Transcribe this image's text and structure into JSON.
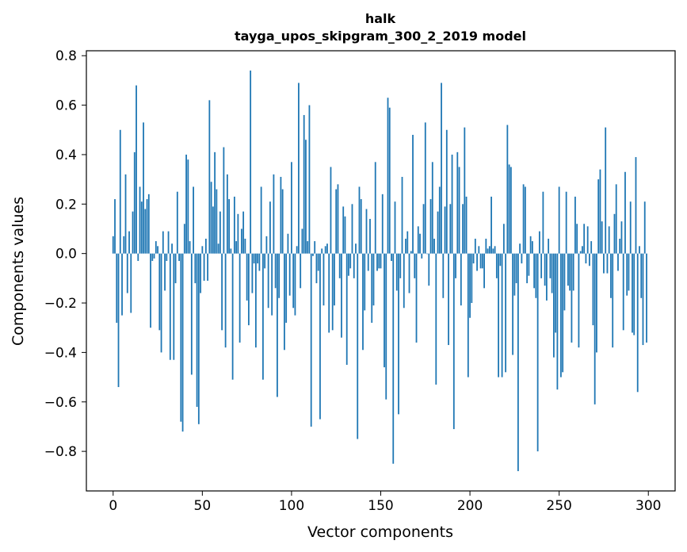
{
  "chart_data": {
    "type": "bar",
    "title": "halk",
    "subtitle": "tayga_upos_skipgram_300_2_2019 model",
    "xlabel": "Vector components",
    "ylabel": "Components values",
    "xlim": [
      -15,
      315
    ],
    "ylim": [
      -0.96,
      0.82
    ],
    "xticks": [
      0,
      50,
      100,
      150,
      200,
      250,
      300
    ],
    "xtick_labels": [
      "0",
      "50",
      "100",
      "150",
      "200",
      "250",
      "300"
    ],
    "yticks": [
      -0.8,
      -0.6,
      -0.4,
      -0.2,
      0.0,
      0.2,
      0.4,
      0.6,
      0.8
    ],
    "ytick_labels": [
      "−0.8",
      "−0.6",
      "−0.4",
      "−0.2",
      "0.0",
      "0.2",
      "0.4",
      "0.6",
      "0.8"
    ],
    "bar_color": "#1f77b4",
    "grid": false,
    "x": [
      0,
      1,
      2,
      3,
      4,
      5,
      6,
      7,
      8,
      9,
      10,
      11,
      12,
      13,
      14,
      15,
      16,
      17,
      18,
      19,
      20,
      21,
      22,
      23,
      24,
      25,
      26,
      27,
      28,
      29,
      30,
      31,
      32,
      33,
      34,
      35,
      36,
      37,
      38,
      39,
      40,
      41,
      42,
      43,
      44,
      45,
      46,
      47,
      48,
      49,
      50,
      51,
      52,
      53,
      54,
      55,
      56,
      57,
      58,
      59,
      60,
      61,
      62,
      63,
      64,
      65,
      66,
      67,
      68,
      69,
      70,
      71,
      72,
      73,
      74,
      75,
      76,
      77,
      78,
      79,
      80,
      81,
      82,
      83,
      84,
      85,
      86,
      87,
      88,
      89,
      90,
      91,
      92,
      93,
      94,
      95,
      96,
      97,
      98,
      99,
      100,
      101,
      102,
      103,
      104,
      105,
      106,
      107,
      108,
      109,
      110,
      111,
      112,
      113,
      114,
      115,
      116,
      117,
      118,
      119,
      120,
      121,
      122,
      123,
      124,
      125,
      126,
      127,
      128,
      129,
      130,
      131,
      132,
      133,
      134,
      135,
      136,
      137,
      138,
      139,
      140,
      141,
      142,
      143,
      144,
      145,
      146,
      147,
      148,
      149,
      150,
      151,
      152,
      153,
      154,
      155,
      156,
      157,
      158,
      159,
      160,
      161,
      162,
      163,
      164,
      165,
      166,
      167,
      168,
      169,
      170,
      171,
      172,
      173,
      174,
      175,
      176,
      177,
      178,
      179,
      180,
      181,
      182,
      183,
      184,
      185,
      186,
      187,
      188,
      189,
      190,
      191,
      192,
      193,
      194,
      195,
      196,
      197,
      198,
      199,
      200,
      201,
      202,
      203,
      204,
      205,
      206,
      207,
      208,
      209,
      210,
      211,
      212,
      213,
      214,
      215,
      216,
      217,
      218,
      219,
      220,
      221,
      222,
      223,
      224,
      225,
      226,
      227,
      228,
      229,
      230,
      231,
      232,
      233,
      234,
      235,
      236,
      237,
      238,
      239,
      240,
      241,
      242,
      243,
      244,
      245,
      246,
      247,
      248,
      249,
      250,
      251,
      252,
      253,
      254,
      255,
      256,
      257,
      258,
      259,
      260,
      261,
      262,
      263,
      264,
      265,
      266,
      267,
      268,
      269,
      270,
      271,
      272,
      273,
      274,
      275,
      276,
      277,
      278,
      279,
      280,
      281,
      282,
      283,
      284,
      285,
      286,
      287,
      288,
      289,
      290,
      291,
      292,
      293,
      294,
      295,
      296,
      297,
      298,
      299
    ],
    "values": [
      0.07,
      0.22,
      -0.28,
      -0.54,
      0.5,
      -0.25,
      0.07,
      0.32,
      -0.16,
      0.09,
      -0.24,
      0.17,
      0.41,
      0.68,
      -0.03,
      0.27,
      0.21,
      0.53,
      0.18,
      0.22,
      0.24,
      -0.3,
      -0.03,
      -0.02,
      0.05,
      0.03,
      -0.31,
      -0.4,
      0.09,
      -0.15,
      -0.03,
      0.09,
      -0.43,
      0.04,
      -0.43,
      -0.12,
      0.25,
      -0.03,
      -0.68,
      -0.72,
      0.12,
      0.4,
      0.38,
      0.05,
      -0.49,
      0.27,
      -0.12,
      -0.62,
      -0.69,
      -0.16,
      0.03,
      -0.11,
      0.06,
      -0.11,
      0.62,
      0.29,
      0.19,
      0.41,
      0.26,
      0.04,
      0.17,
      -0.31,
      0.43,
      -0.38,
      0.32,
      0.22,
      0.02,
      -0.51,
      0.23,
      0.05,
      0.16,
      -0.36,
      0.1,
      0.17,
      0.06,
      -0.19,
      -0.29,
      0.74,
      -0.16,
      -0.04,
      -0.38,
      -0.04,
      -0.07,
      0.27,
      -0.51,
      -0.06,
      0.07,
      -0.22,
      0.21,
      -0.25,
      0.32,
      -0.14,
      -0.58,
      -0.18,
      0.31,
      0.26,
      -0.39,
      -0.28,
      0.08,
      -0.17,
      0.37,
      -0.22,
      -0.25,
      0.03,
      0.69,
      -0.14,
      0.1,
      0.56,
      0.46,
      0.05,
      0.6,
      -0.7,
      -0.01,
      0.05,
      -0.12,
      -0.07,
      -0.67,
      0.02,
      -0.21,
      0.03,
      0.04,
      -0.32,
      0.35,
      -0.31,
      -0.21,
      0.26,
      0.28,
      -0.1,
      -0.34,
      0.19,
      0.15,
      -0.45,
      -0.09,
      -0.06,
      0.2,
      -0.1,
      0.04,
      -0.75,
      0.27,
      0.22,
      -0.39,
      -0.23,
      0.18,
      -0.07,
      0.14,
      -0.28,
      -0.21,
      0.37,
      -0.07,
      -0.06,
      -0.06,
      0.24,
      -0.46,
      -0.59,
      0.63,
      0.59,
      -0.03,
      -0.85,
      0.21,
      -0.15,
      -0.65,
      -0.1,
      0.31,
      -0.22,
      0.06,
      0.09,
      -0.16,
      0.01,
      0.48,
      -0.1,
      -0.36,
      0.11,
      0.08,
      -0.02,
      0.2,
      0.53,
      0.0,
      -0.13,
      0.22,
      0.37,
      0.06,
      -0.53,
      0.17,
      0.27,
      0.69,
      -0.18,
      0.19,
      0.5,
      -0.37,
      0.2,
      0.4,
      -0.71,
      -0.1,
      0.41,
      0.35,
      -0.21,
      0.2,
      0.51,
      0.23,
      -0.5,
      -0.26,
      -0.2,
      -0.04,
      0.06,
      -0.07,
      0.03,
      -0.06,
      -0.06,
      -0.14,
      0.06,
      0.02,
      0.03,
      0.23,
      0.02,
      0.03,
      -0.1,
      -0.5,
      -0.05,
      -0.5,
      0.12,
      -0.48,
      0.52,
      0.36,
      0.35,
      -0.41,
      -0.17,
      -0.12,
      -0.88,
      0.04,
      -0.04,
      0.28,
      0.27,
      -0.12,
      -0.09,
      0.07,
      0.05,
      -0.14,
      -0.18,
      -0.8,
      0.09,
      -0.1,
      0.25,
      -0.13,
      -0.19,
      0.06,
      -0.1,
      -0.16,
      -0.42,
      -0.32,
      -0.55,
      0.27,
      -0.5,
      -0.48,
      -0.23,
      0.25,
      -0.13,
      -0.15,
      -0.36,
      -0.15,
      0.23,
      0.12,
      -0.38,
      0.01,
      0.03,
      0.12,
      -0.04,
      0.11,
      -0.05,
      0.05,
      -0.29,
      -0.61,
      -0.4,
      0.3,
      0.34,
      0.13,
      -0.08,
      0.51,
      -0.08,
      0.11,
      -0.18,
      -0.38,
      0.16,
      0.28,
      -0.07,
      0.06,
      0.13,
      -0.31,
      0.33,
      -0.17,
      -0.15,
      0.21,
      -0.32,
      -0.33,
      0.39,
      -0.56,
      0.03,
      -0.18,
      -0.37,
      0.21,
      -0.36
    ]
  }
}
